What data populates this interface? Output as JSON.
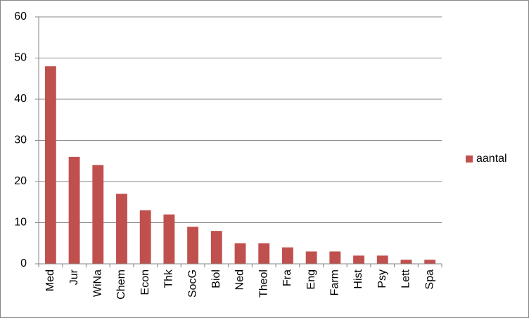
{
  "chart_data": {
    "type": "bar",
    "categories": [
      "Med",
      "Jur",
      "WiNa",
      "Chem",
      "Econ",
      "Thk",
      "SocG",
      "Biol",
      "Ned",
      "Theol",
      "Fra",
      "Eng",
      "Farm",
      "Hist",
      "Psy",
      "Lett",
      "Spa"
    ],
    "series": [
      {
        "name": "aantal",
        "color": "#c0504d",
        "values": [
          48,
          26,
          24,
          17,
          13,
          12,
          9,
          8,
          5,
          5,
          4,
          3,
          3,
          2,
          2,
          1,
          1
        ]
      }
    ],
    "ylim": [
      0,
      60
    ],
    "yticks": [
      0,
      10,
      20,
      30,
      40,
      50,
      60
    ],
    "grid": true,
    "legend": "right"
  }
}
